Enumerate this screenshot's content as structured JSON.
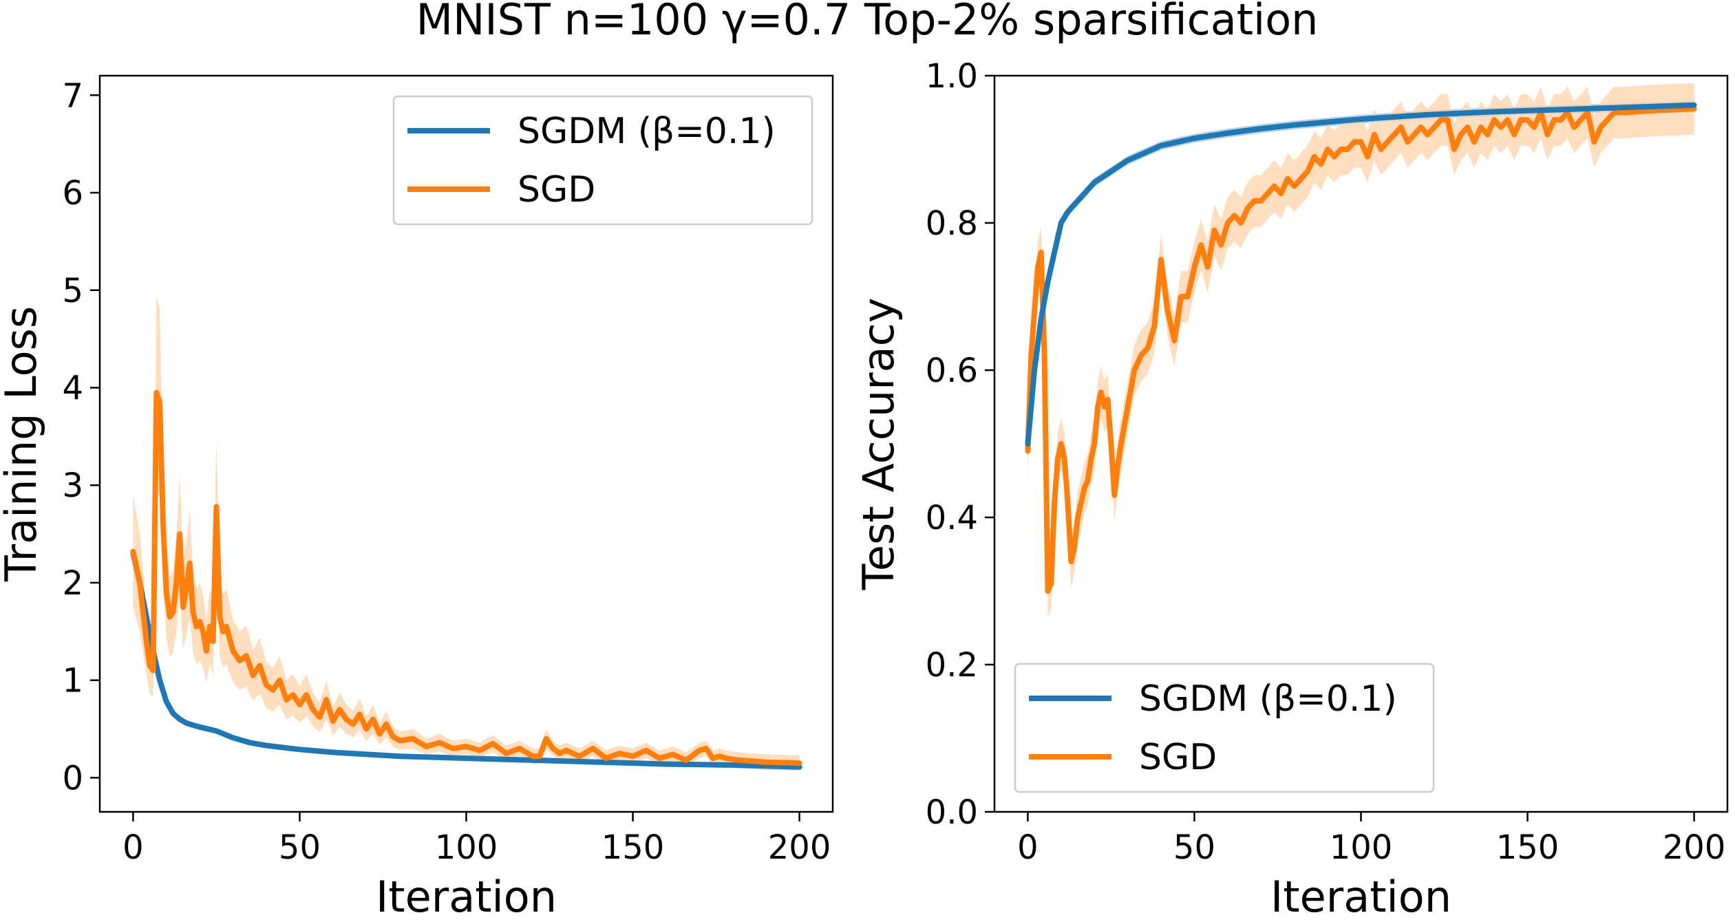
{
  "figure": {
    "title": "MNIST n=100 γ=0.7 Top-2% sparsification"
  },
  "colors": {
    "sgdm": "#1f77b4",
    "sgd": "#ff7f0e",
    "sgd_band": "#ffd2aa",
    "sgdm_band": "#9ec7e6"
  },
  "chart_data": [
    {
      "type": "line",
      "title": "",
      "xlabel": "Iteration",
      "ylabel": "Training Loss",
      "xlim": [
        -10,
        210
      ],
      "ylim": [
        -0.35,
        7.2
      ],
      "xticks": [
        0,
        50,
        100,
        150,
        200
      ],
      "yticks": [
        0,
        1,
        2,
        3,
        4,
        5,
        6,
        7
      ],
      "grid": false,
      "legend_position": "top-right",
      "series": [
        {
          "name": "SGDM (β=0.1)",
          "color_key": "sgdm",
          "x": [
            0,
            2,
            4,
            6,
            8,
            10,
            12,
            14,
            16,
            18,
            20,
            25,
            30,
            35,
            40,
            50,
            60,
            70,
            80,
            90,
            100,
            120,
            140,
            160,
            180,
            200
          ],
          "y": [
            2.3,
            2.0,
            1.65,
            1.3,
            1.0,
            0.78,
            0.66,
            0.6,
            0.56,
            0.54,
            0.52,
            0.48,
            0.41,
            0.36,
            0.33,
            0.29,
            0.26,
            0.24,
            0.22,
            0.21,
            0.2,
            0.18,
            0.16,
            0.14,
            0.13,
            0.11
          ]
        },
        {
          "name": "SGD",
          "color_key": "sgd",
          "x": [
            0,
            2,
            4,
            5,
            6,
            7,
            8,
            9,
            10,
            11,
            12,
            13,
            14,
            15,
            16,
            17,
            18,
            19,
            20,
            21,
            22,
            23,
            24,
            25,
            26,
            27,
            28,
            30,
            32,
            34,
            36,
            38,
            40,
            42,
            44,
            46,
            48,
            50,
            52,
            54,
            56,
            58,
            60,
            62,
            64,
            66,
            68,
            70,
            72,
            74,
            76,
            78,
            80,
            84,
            88,
            92,
            96,
            100,
            104,
            108,
            112,
            116,
            120,
            122,
            124,
            126,
            128,
            130,
            134,
            138,
            142,
            146,
            150,
            154,
            158,
            162,
            166,
            170,
            172,
            174,
            176,
            178,
            182,
            190,
            200
          ],
          "y": [
            2.32,
            2.0,
            1.4,
            1.15,
            1.1,
            3.95,
            3.85,
            2.6,
            1.9,
            1.65,
            1.7,
            2.0,
            2.5,
            1.75,
            1.95,
            2.2,
            1.7,
            1.55,
            1.6,
            1.5,
            1.3,
            1.55,
            1.4,
            2.78,
            1.65,
            1.5,
            1.55,
            1.3,
            1.2,
            1.25,
            1.05,
            1.15,
            0.95,
            0.9,
            1.0,
            0.8,
            0.85,
            0.75,
            0.85,
            0.7,
            0.62,
            0.8,
            0.58,
            0.7,
            0.6,
            0.55,
            0.65,
            0.5,
            0.6,
            0.45,
            0.55,
            0.42,
            0.38,
            0.4,
            0.32,
            0.36,
            0.3,
            0.32,
            0.28,
            0.35,
            0.25,
            0.3,
            0.22,
            0.22,
            0.4,
            0.3,
            0.25,
            0.28,
            0.22,
            0.3,
            0.2,
            0.25,
            0.22,
            0.28,
            0.2,
            0.24,
            0.18,
            0.28,
            0.3,
            0.2,
            0.22,
            0.2,
            0.18,
            0.16,
            0.15
          ]
        }
      ]
    },
    {
      "type": "line",
      "title": "",
      "xlabel": "Iteration",
      "ylabel": "Test Accuracy",
      "xlim": [
        -10,
        210
      ],
      "ylim": [
        0.0,
        1.0
      ],
      "xticks": [
        0,
        50,
        100,
        150,
        200
      ],
      "yticks": [
        0.0,
        0.2,
        0.4,
        0.6,
        0.8,
        1.0
      ],
      "grid": false,
      "legend_position": "bottom-left",
      "series": [
        {
          "name": "SGDM (β=0.1)",
          "color_key": "sgdm",
          "x": [
            0,
            2,
            4,
            6,
            8,
            10,
            12,
            14,
            16,
            18,
            20,
            25,
            30,
            35,
            40,
            45,
            50,
            60,
            70,
            80,
            90,
            100,
            120,
            140,
            160,
            180,
            200
          ],
          "y": [
            0.5,
            0.6,
            0.67,
            0.72,
            0.76,
            0.8,
            0.815,
            0.825,
            0.835,
            0.845,
            0.855,
            0.87,
            0.885,
            0.895,
            0.905,
            0.91,
            0.915,
            0.922,
            0.928,
            0.933,
            0.937,
            0.941,
            0.947,
            0.951,
            0.954,
            0.957,
            0.96
          ]
        },
        {
          "name": "SGD",
          "color_key": "sgd",
          "x": [
            0,
            1,
            2,
            3,
            4,
            5,
            6,
            7,
            8,
            9,
            10,
            11,
            12,
            13,
            14,
            15,
            16,
            17,
            18,
            19,
            20,
            21,
            22,
            23,
            24,
            25,
            26,
            27,
            28,
            30,
            32,
            34,
            36,
            38,
            40,
            42,
            44,
            46,
            48,
            50,
            52,
            54,
            56,
            58,
            60,
            62,
            64,
            66,
            68,
            70,
            72,
            74,
            76,
            78,
            80,
            82,
            84,
            86,
            88,
            90,
            92,
            94,
            96,
            98,
            100,
            102,
            104,
            106,
            108,
            110,
            112,
            114,
            116,
            118,
            120,
            122,
            124,
            126,
            128,
            130,
            132,
            134,
            136,
            138,
            140,
            142,
            144,
            146,
            148,
            150,
            152,
            154,
            156,
            158,
            160,
            162,
            164,
            166,
            168,
            170,
            172,
            174,
            176,
            178,
            180,
            185,
            190,
            195,
            200
          ],
          "y": [
            0.49,
            0.62,
            0.68,
            0.74,
            0.76,
            0.62,
            0.3,
            0.31,
            0.42,
            0.48,
            0.5,
            0.48,
            0.42,
            0.34,
            0.36,
            0.4,
            0.42,
            0.44,
            0.45,
            0.48,
            0.5,
            0.55,
            0.57,
            0.55,
            0.56,
            0.5,
            0.43,
            0.47,
            0.5,
            0.55,
            0.6,
            0.62,
            0.63,
            0.66,
            0.75,
            0.68,
            0.64,
            0.7,
            0.7,
            0.74,
            0.77,
            0.74,
            0.79,
            0.77,
            0.8,
            0.81,
            0.8,
            0.82,
            0.83,
            0.83,
            0.84,
            0.85,
            0.84,
            0.86,
            0.85,
            0.86,
            0.87,
            0.89,
            0.88,
            0.9,
            0.89,
            0.9,
            0.9,
            0.91,
            0.91,
            0.89,
            0.92,
            0.9,
            0.91,
            0.92,
            0.93,
            0.91,
            0.92,
            0.93,
            0.92,
            0.93,
            0.94,
            0.94,
            0.9,
            0.92,
            0.93,
            0.91,
            0.93,
            0.92,
            0.94,
            0.93,
            0.94,
            0.92,
            0.94,
            0.94,
            0.93,
            0.95,
            0.92,
            0.94,
            0.94,
            0.95,
            0.93,
            0.94,
            0.95,
            0.91,
            0.93,
            0.94,
            0.95,
            0.95,
            0.95,
            0.952,
            0.953,
            0.954,
            0.955
          ]
        }
      ]
    }
  ]
}
